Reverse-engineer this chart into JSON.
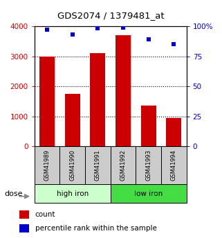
{
  "title": "GDS2074 / 1379481_at",
  "samples": [
    "GSM41989",
    "GSM41990",
    "GSM41991",
    "GSM41992",
    "GSM41993",
    "GSM41994"
  ],
  "bar_values": [
    3000,
    1750,
    3100,
    3700,
    1350,
    950
  ],
  "dot_values": [
    97,
    93,
    98,
    99,
    89,
    85
  ],
  "bar_color": "#cc0000",
  "dot_color": "#0000cc",
  "groups": [
    {
      "label": "high iron",
      "color": "#ccffcc"
    },
    {
      "label": "low iron",
      "color": "#44dd44"
    }
  ],
  "ylim_left": [
    0,
    4000
  ],
  "ylim_right": [
    0,
    100
  ],
  "yticks_left": [
    0,
    1000,
    2000,
    3000,
    4000
  ],
  "yticks_right": [
    0,
    25,
    50,
    75,
    100
  ],
  "yticklabels_left": [
    "0",
    "1000",
    "2000",
    "3000",
    "4000"
  ],
  "yticklabels_right": [
    "0",
    "25",
    "50",
    "75",
    "100%"
  ],
  "label_count": "count",
  "label_percentile": "percentile rank within the sample",
  "dose_label": "dose",
  "bar_width": 0.6
}
